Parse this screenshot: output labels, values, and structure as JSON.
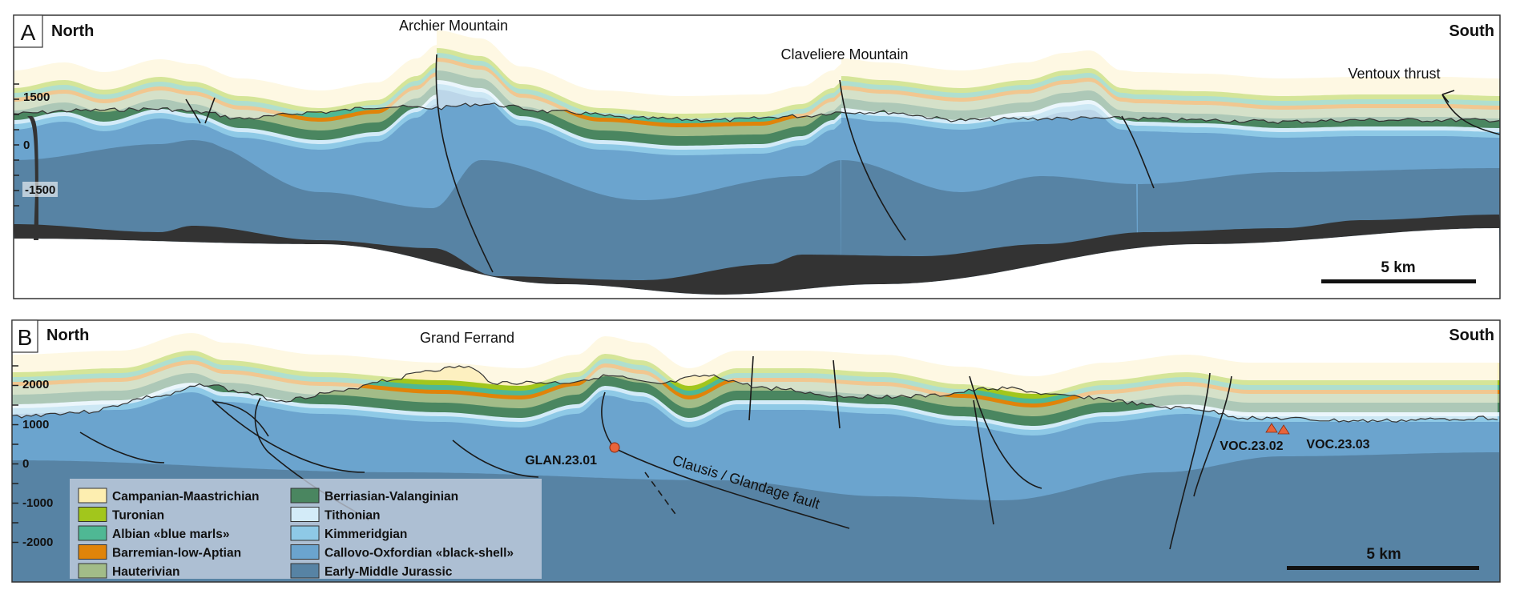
{
  "colors": {
    "campanian": "#fdf0c0",
    "turonian": "#a2c61c",
    "albian": "#4fb894",
    "barremian": "#e0840a",
    "hauterivian": "#a2bc88",
    "berriasian": "#4a8660",
    "tithonian": "#d3ebf8",
    "kimmeridgian": "#8ec9e6",
    "callovo": "#6ba4ce",
    "early_middle": "#5783a4",
    "basement": "#333333",
    "sample_marker": "#e8643a"
  },
  "panel_a": {
    "letter": "A",
    "north": "North",
    "south": "South",
    "places": [
      "Archier Mountain",
      "Claveliere Mountain",
      "Ventoux thrust"
    ],
    "axis_ticks": [
      "1500",
      "0",
      "-1500"
    ],
    "scale_label": "5 km"
  },
  "panel_b": {
    "letter": "B",
    "north": "North",
    "south": "South",
    "places": [
      "Grand Ferrand"
    ],
    "axis_ticks": [
      "2000",
      "1000",
      "0",
      "-1000",
      "-2000"
    ],
    "fault_label": "Clausis / Glandage fault",
    "samples": [
      "GLAN.23.01",
      "VOC.23.02",
      "VOC.23.03"
    ],
    "scale_label": "5 km"
  },
  "legend": [
    {
      "label": "Campanian-Maastrichian",
      "color": "#fdeeb0"
    },
    {
      "label": "Turonian",
      "color": "#a2c61c"
    },
    {
      "label": "Albian «blue marls»",
      "color": "#4fb894"
    },
    {
      "label": "Barremian-low-Aptian",
      "color": "#e0840a"
    },
    {
      "label": "Hauterivian",
      "color": "#a2bc88"
    },
    {
      "label": "Berriasian-Valanginian",
      "color": "#4a8660"
    },
    {
      "label": "Tithonian",
      "color": "#d3ebf8"
    },
    {
      "label": "Kimmeridgian",
      "color": "#8ec9e6"
    },
    {
      "label": "Callovo-Oxfordian «black-shell»",
      "color": "#6ba4ce"
    },
    {
      "label": "Early-Middle Jurassic",
      "color": "#5783a4"
    }
  ]
}
